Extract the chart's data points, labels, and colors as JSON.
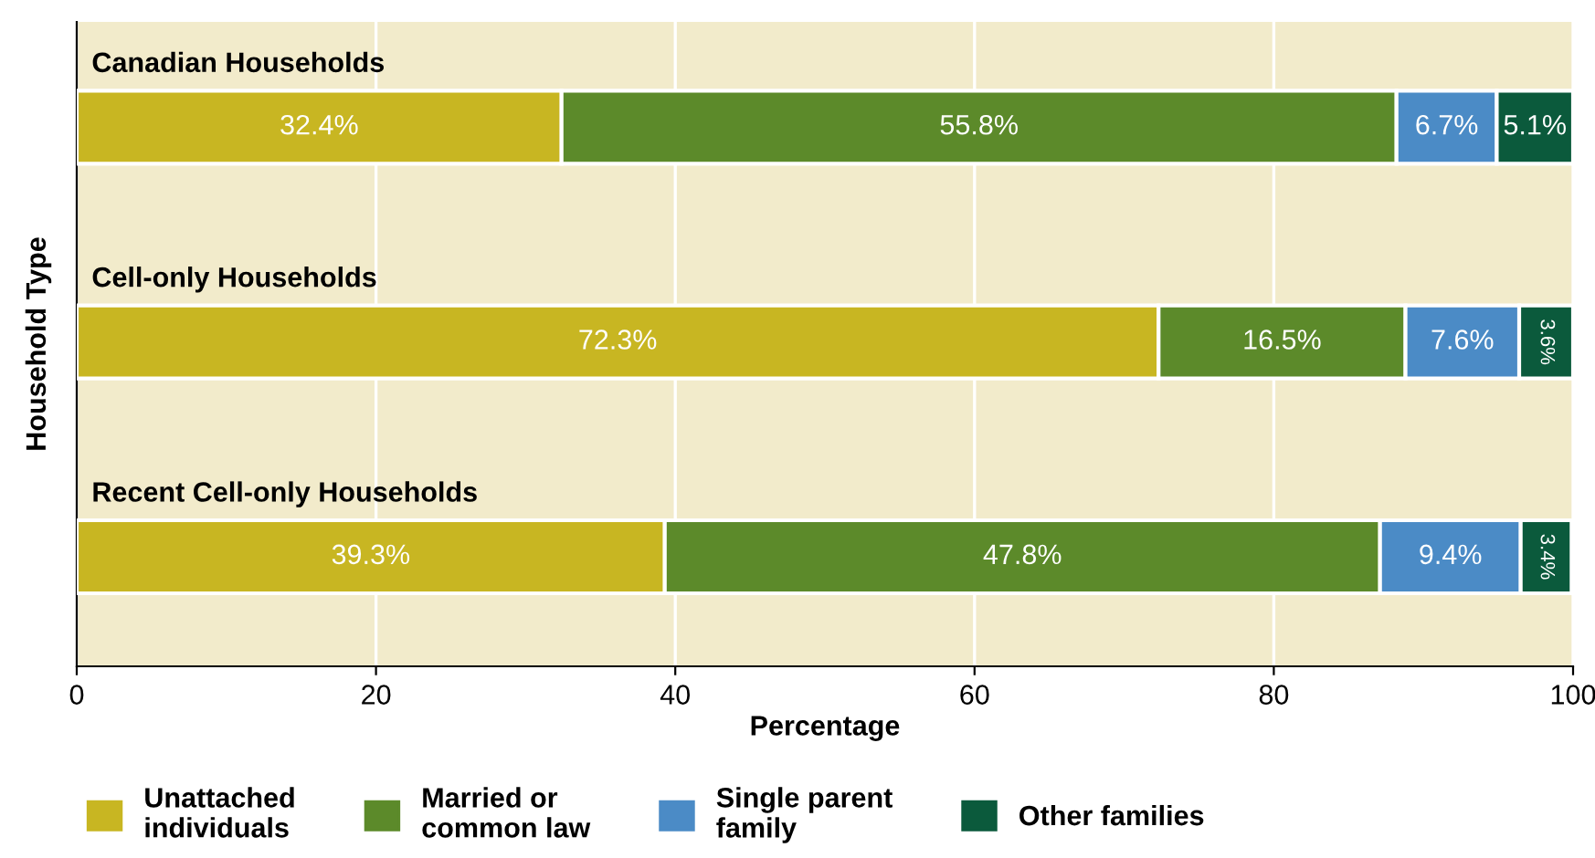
{
  "chart_data": {
    "type": "bar",
    "orientation": "horizontal",
    "stacked": true,
    "categories": [
      "Canadian Households",
      "Cell-only Households",
      "Recent Cell-only Households"
    ],
    "xlabel": "Percentage",
    "ylabel": "Household Type",
    "xlim": [
      0,
      100
    ],
    "xticks": [
      0,
      20,
      40,
      60,
      80,
      100
    ],
    "grid": "x",
    "legend": "bottom",
    "series": [
      {
        "name": "Unattached\nindividuals",
        "color": "#c8b622",
        "values": [
          32.4,
          72.3,
          39.3
        ],
        "value_labels": [
          "32.4%",
          "72.3%",
          "39.3%"
        ]
      },
      {
        "name": "Married or\ncommon law",
        "color": "#5c8a2a",
        "values": [
          55.8,
          16.5,
          47.8
        ],
        "value_labels": [
          "55.8%",
          "16.5%",
          "47.8%"
        ]
      },
      {
        "name": "Single parent\nfamily",
        "color": "#4b8bc6",
        "values": [
          6.7,
          7.6,
          9.4
        ],
        "value_labels": [
          "6.7%",
          "7.6%",
          "9.4%"
        ]
      },
      {
        "name": "Other families",
        "color": "#0b5a3c",
        "values": [
          5.1,
          3.6,
          3.4
        ],
        "value_labels": [
          "5.1%",
          "3.6%",
          "3.4%"
        ]
      }
    ]
  }
}
